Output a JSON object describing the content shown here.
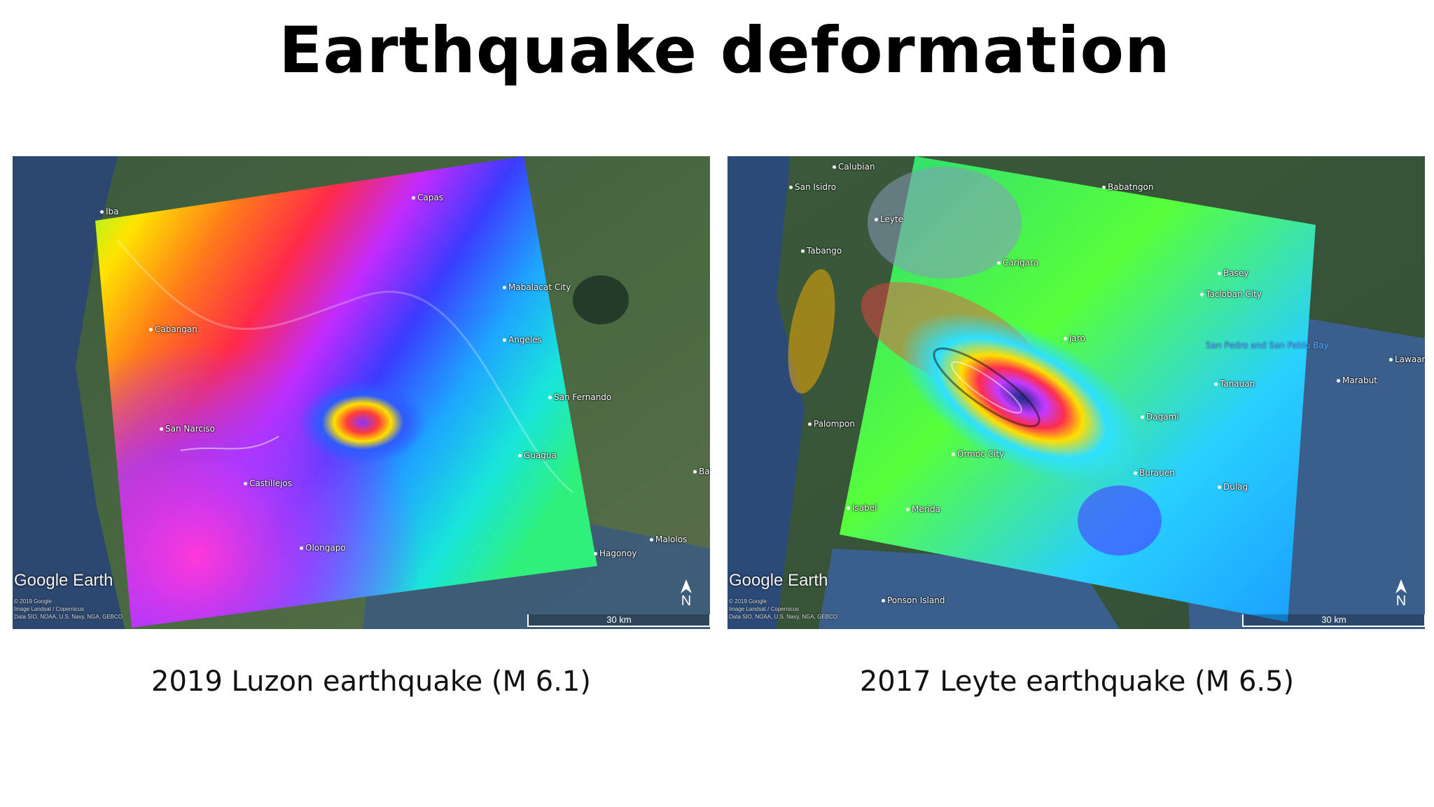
{
  "title": "Earthquake deformation",
  "left_panel": {
    "caption": "2019 Luzon earthquake (M 6.1)",
    "brand": "Google Earth",
    "credits": "© 2019 Google\nImage Landsat / Copernicus\nData SIO, NOAA, U.S. Navy, NGA, GEBCO",
    "scale": "30 km",
    "north": "N",
    "places": [
      "Iba",
      "Capas",
      "Mabalacat City",
      "Cabangan",
      "Angeles",
      "San Fernando",
      "San Narciso",
      "Guagua",
      "Castillejos",
      "Olongapo",
      "Malolos",
      "Hagonoy",
      "Bal"
    ]
  },
  "right_panel": {
    "caption": "2017 Leyte earthquake (M 6.5)",
    "brand": "Google Earth",
    "credits": "© 2019 Google\nImage Landsat / Copernicus\nData SIO, NOAA, U.S. Navy, NGA, GEBCO",
    "scale": "30 km",
    "north": "N",
    "places": [
      "Calubian",
      "San Isidro",
      "Babatngon",
      "Leyte",
      "Tabango",
      "Carigara",
      "Basey",
      "Tacloban City",
      "Jaro",
      "Palompon",
      "Tanauan",
      "Dagami",
      "Marabut",
      "Lawaan",
      "Ormoc City",
      "Burauen",
      "Dulag",
      "Isabel",
      "Merida",
      "Ponson Island"
    ],
    "sea_label": "San Pedro and San Pablo Bay"
  }
}
